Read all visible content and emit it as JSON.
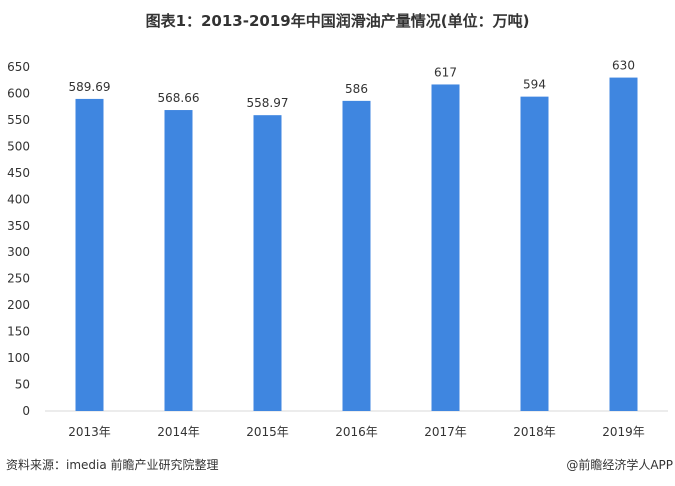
{
  "title": "图表1：2013-2019年中国润滑油产量情况(单位：万吨)",
  "source": "资料来源：imedia 前瞻产业研究院整理",
  "credit": "@前瞻经济学人APP",
  "chart_data": {
    "type": "bar",
    "title": "图表1：2013-2019年中国润滑油产量情况(单位：万吨)",
    "categories": [
      "2013年",
      "2014年",
      "2015年",
      "2016年",
      "2017年",
      "2018年",
      "2019年"
    ],
    "values": [
      589.69,
      568.66,
      558.97,
      586,
      617,
      594,
      630
    ],
    "labels": [
      "589.69",
      "568.66",
      "558.97",
      "586",
      "617",
      "594",
      "630"
    ],
    "ylim": [
      0,
      650
    ],
    "yticks": [
      0,
      50,
      100,
      150,
      200,
      250,
      300,
      350,
      400,
      450,
      500,
      550,
      600,
      650
    ],
    "grid": false,
    "bar_color": "#3f86e0"
  }
}
